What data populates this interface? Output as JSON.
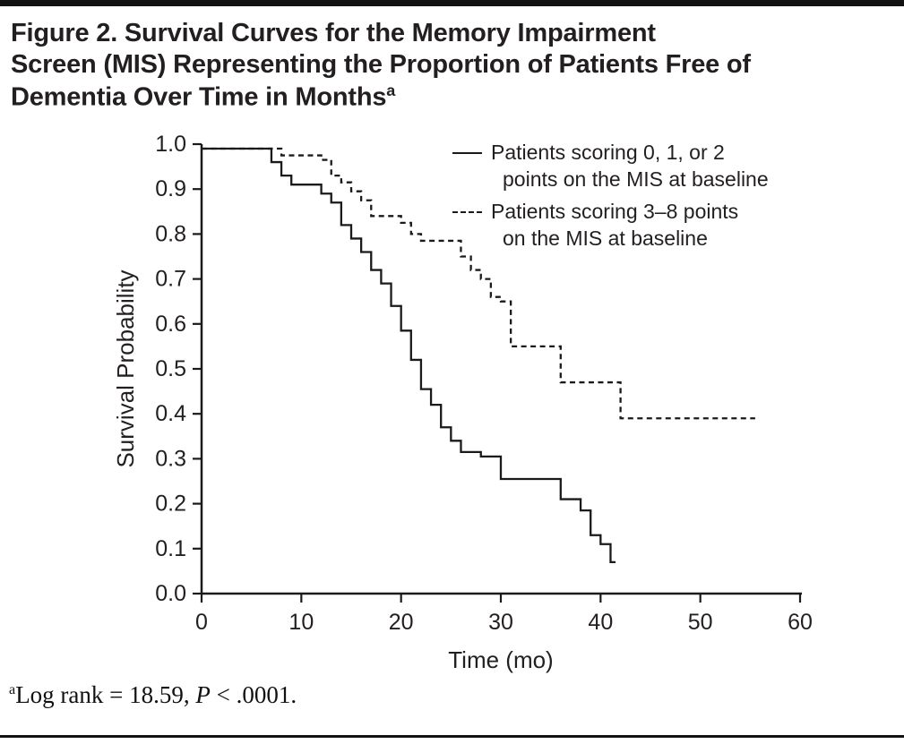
{
  "header": {
    "title_lines": [
      "Figure 2. Survival Curves for the Memory Impairment",
      "Screen (MIS) Representing the Proportion of Patients Free of",
      "Dementia Over Time in Months"
    ],
    "title_superscript": "a"
  },
  "legend": {
    "entries": [
      {
        "style": "solid",
        "line1": "Patients scoring 0, 1, or 2",
        "line2": "points on the MIS at baseline"
      },
      {
        "style": "dashed",
        "line1": "Patients scoring 3–8 points",
        "line2": "on the MIS at baseline"
      }
    ]
  },
  "footnote": {
    "superscript": "a",
    "text1": "Log rank = 18.59, ",
    "p_symbol": "P",
    "text2": " < .0001."
  },
  "colors": {
    "ink": "#1a1a1a",
    "text": "#231f20",
    "rule": "#121212"
  },
  "chart_data": {
    "type": "line",
    "subtype": "kaplan-meier-step",
    "title": "",
    "xlabel": "Time (mo)",
    "ylabel": "Survival Probability",
    "xlim": [
      0,
      60
    ],
    "ylim": [
      0.0,
      1.0
    ],
    "xticks": [
      "0",
      "10",
      "20",
      "30",
      "40",
      "50",
      "60"
    ],
    "yticks": [
      "0.0",
      "0.1",
      "0.2",
      "0.3",
      "0.4",
      "0.5",
      "0.6",
      "0.7",
      "0.8",
      "0.9",
      "1.0"
    ],
    "grid": false,
    "legend_position": "upper-right-inside",
    "step": "after",
    "series": [
      {
        "name": "Patients scoring 0, 1, or 2 points on the MIS at baseline",
        "style": "solid",
        "points": [
          [
            0,
            0.99
          ],
          [
            7,
            0.96
          ],
          [
            8,
            0.93
          ],
          [
            9,
            0.91
          ],
          [
            12,
            0.89
          ],
          [
            13,
            0.87
          ],
          [
            14,
            0.82
          ],
          [
            15,
            0.79
          ],
          [
            16,
            0.76
          ],
          [
            17,
            0.72
          ],
          [
            18,
            0.69
          ],
          [
            19,
            0.64
          ],
          [
            20,
            0.585
          ],
          [
            21,
            0.52
          ],
          [
            22,
            0.455
          ],
          [
            23,
            0.42
          ],
          [
            24,
            0.37
          ],
          [
            25,
            0.34
          ],
          [
            26,
            0.315
          ],
          [
            28,
            0.305
          ],
          [
            30,
            0.255
          ],
          [
            36,
            0.21
          ],
          [
            38,
            0.185
          ],
          [
            39,
            0.13
          ],
          [
            40,
            0.11
          ],
          [
            41,
            0.07
          ]
        ],
        "end_x": 41.5
      },
      {
        "name": "Patients scoring 3–8 points on the MIS at baseline",
        "style": "dashed",
        "points": [
          [
            0,
            0.99
          ],
          [
            8,
            0.975
          ],
          [
            12,
            0.965
          ],
          [
            13,
            0.93
          ],
          [
            14,
            0.915
          ],
          [
            15,
            0.895
          ],
          [
            16,
            0.875
          ],
          [
            17,
            0.84
          ],
          [
            20,
            0.825
          ],
          [
            21,
            0.8
          ],
          [
            22,
            0.785
          ],
          [
            26,
            0.75
          ],
          [
            27,
            0.72
          ],
          [
            28,
            0.7
          ],
          [
            29,
            0.66
          ],
          [
            30,
            0.65
          ],
          [
            31,
            0.55
          ],
          [
            36,
            0.47
          ],
          [
            42,
            0.39
          ]
        ],
        "end_x": 55.5
      }
    ]
  }
}
